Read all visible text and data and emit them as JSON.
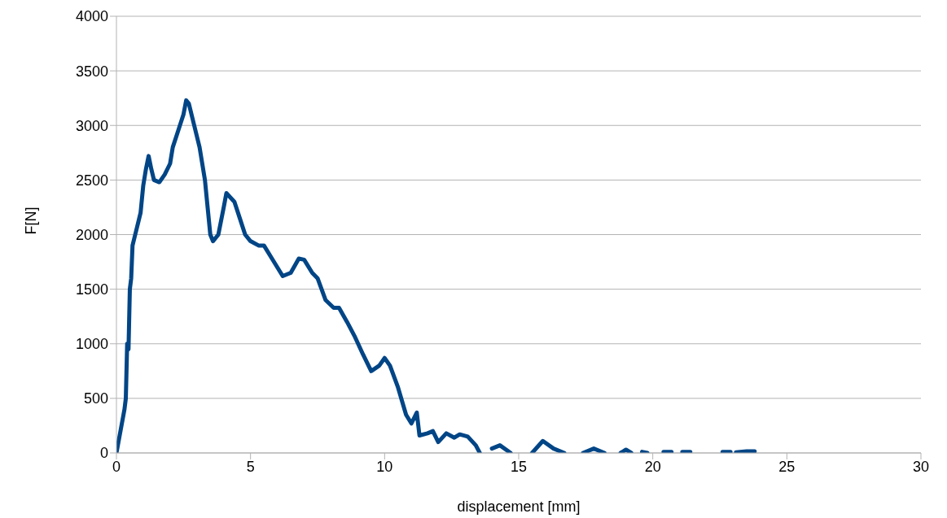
{
  "chart_data": {
    "type": "line",
    "xlabel": "displacement [mm]",
    "ylabel": "F[N]",
    "x": [
      0,
      0.3,
      0.35,
      0.4,
      0.45,
      0.5,
      0.55,
      0.6,
      0.7,
      0.8,
      0.9,
      1.0,
      1.1,
      1.2,
      1.3,
      1.4,
      1.6,
      1.8,
      2.0,
      2.1,
      2.3,
      2.5,
      2.6,
      2.7,
      2.9,
      3.1,
      3.3,
      3.5,
      3.6,
      3.8,
      4.0,
      4.1,
      4.4,
      4.6,
      4.8,
      5.0,
      5.3,
      5.5,
      5.8,
      6.2,
      6.5,
      6.8,
      7.0,
      7.3,
      7.5,
      7.8,
      8.1,
      8.3,
      8.6,
      8.9,
      9.2,
      9.5,
      9.8,
      10.0,
      10.2,
      10.5,
      10.8,
      11.0,
      11.2,
      11.3,
      11.6,
      11.8,
      12.0,
      12.3,
      12.6,
      12.8,
      13.1,
      13.4,
      13.55,
      13.8,
      14.0,
      14.3,
      14.7,
      15.1,
      15.5,
      15.9,
      16.3,
      16.7,
      17.0,
      17.4,
      17.8,
      18.2,
      18.5,
      18.8,
      19.0,
      19.2,
      19.4,
      19.6,
      19.8,
      20.2,
      20.4,
      20.7,
      21.0,
      21.1,
      21.4,
      22.0,
      22.6,
      22.9,
      23.0,
      23.1,
      23.5,
      23.8
    ],
    "series": [
      {
        "color": "#004586",
        "values": [
          0,
          400,
          500,
          1000,
          950,
          1500,
          1600,
          1900,
          2000,
          2100,
          2200,
          2450,
          2600,
          2720,
          2600,
          2500,
          2480,
          2550,
          2650,
          2800,
          2950,
          3100,
          3230,
          3200,
          3000,
          2800,
          2500,
          2000,
          1940,
          2000,
          2250,
          2380,
          2300,
          2150,
          2000,
          1940,
          1900,
          1900,
          1780,
          1620,
          1650,
          1780,
          1770,
          1650,
          1600,
          1400,
          1330,
          1330,
          1200,
          1060,
          900,
          750,
          800,
          870,
          800,
          600,
          350,
          270,
          370,
          160,
          180,
          200,
          100,
          180,
          140,
          170,
          150,
          70,
          0,
          null,
          40,
          70,
          0,
          null,
          0,
          110,
          40,
          0,
          null,
          0,
          40,
          0,
          null,
          0,
          30,
          0,
          null,
          10,
          0,
          null,
          10,
          10,
          null,
          10,
          10,
          null,
          10,
          10,
          null,
          5,
          15,
          15
        ]
      }
    ],
    "xlim": [
      0,
      30
    ],
    "xticks": [
      0,
      5,
      10,
      15,
      20,
      25,
      30
    ],
    "ylim": [
      0,
      4000
    ],
    "yticks": [
      0,
      500,
      1000,
      1500,
      2000,
      2500,
      3000,
      3500,
      4000
    ],
    "grid": "y",
    "legend": false,
    "marker": "none",
    "line_style": "solid"
  }
}
